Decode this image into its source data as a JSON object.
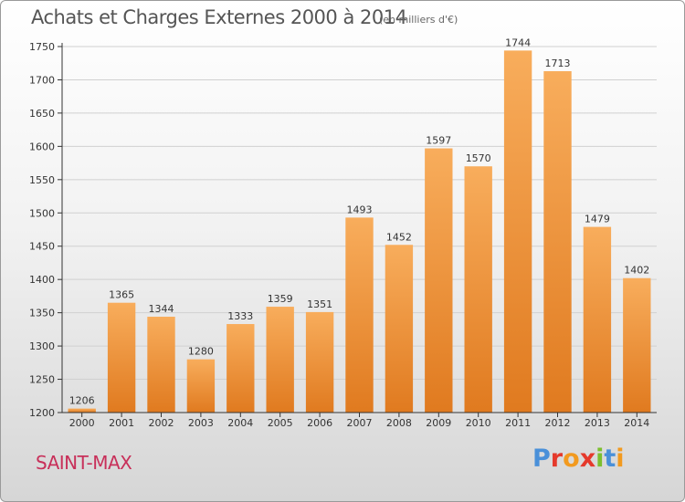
{
  "header": {
    "title": "Achats et Charges Externes 2000 à 2014",
    "subtitle": "(en milliers d'€)"
  },
  "footer": {
    "place": "SAINT-MAX",
    "logo_text": "Proxiti",
    "logo_colors": [
      "#4a90d9",
      "#e5392b",
      "#f29a1f",
      "#e5392b",
      "#7cbf2e",
      "#4a90d9",
      "#f29a1f"
    ]
  },
  "colors": {
    "bar_light": "#f8ad5c",
    "bar_dark": "#e07a1f",
    "grid": "#d0d0d0",
    "axis": "#333333"
  },
  "chart_data": {
    "type": "bar",
    "title": "Achats et Charges Externes 2000 à 2014",
    "subtitle": "(en milliers d'€)",
    "categories": [
      "2000",
      "2001",
      "2002",
      "2003",
      "2004",
      "2005",
      "2006",
      "2007",
      "2008",
      "2009",
      "2010",
      "2011",
      "2012",
      "2013",
      "2014"
    ],
    "values": [
      1206,
      1365,
      1344,
      1280,
      1333,
      1359,
      1351,
      1493,
      1452,
      1597,
      1570,
      1744,
      1713,
      1479,
      1402
    ],
    "ylim": [
      1200,
      1750
    ],
    "yticks": [
      1200,
      1250,
      1300,
      1350,
      1400,
      1450,
      1500,
      1550,
      1600,
      1650,
      1700,
      1750
    ],
    "grid": true,
    "xlabel": "",
    "ylabel": ""
  }
}
